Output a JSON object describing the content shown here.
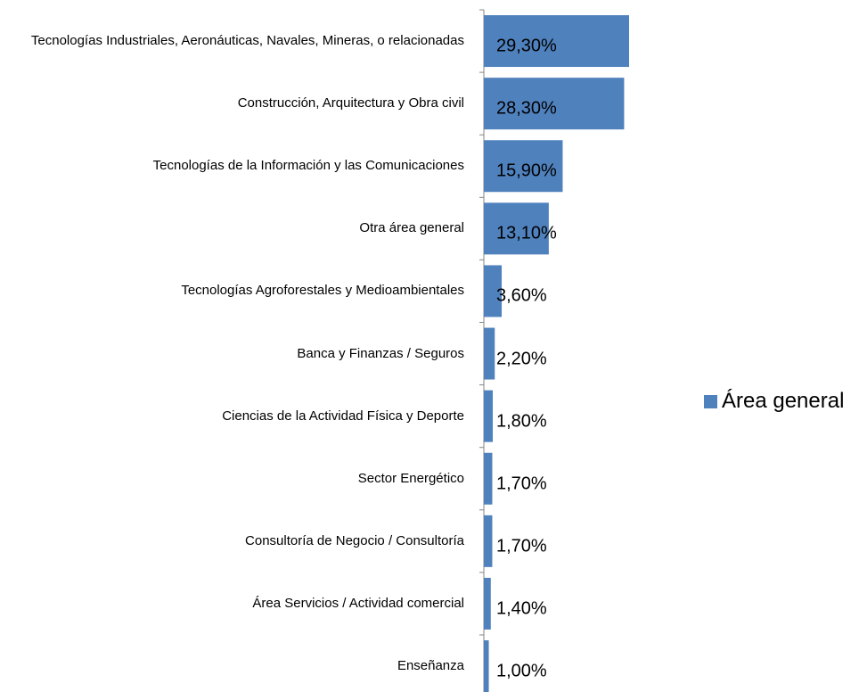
{
  "chart_data": {
    "type": "bar",
    "orientation": "horizontal",
    "categories": [
      "Tecnologías Industriales, Aeronáuticas, Navales, Mineras, o relacionadas",
      "Construcción, Arquitectura y Obra civil",
      "Tecnologías de la Información y las Comunicaciones",
      "Otra área general",
      "Tecnologías Agroforestales y Medioambientales",
      "Banca y Finanzas / Seguros",
      "Ciencias de la Actividad Física y Deporte",
      "Sector Energético",
      "Consultoría de Negocio / Consultoría",
      "Área Servicios / Actividad comercial",
      "Enseñanza"
    ],
    "series": [
      {
        "name": "Área general",
        "color": "#4f81bd",
        "values": [
          29.3,
          28.3,
          15.9,
          13.1,
          3.6,
          2.2,
          1.8,
          1.7,
          1.7,
          1.4,
          1.0
        ],
        "value_labels": [
          "29,30%",
          "28,30%",
          "15,90%",
          "13,10%",
          "3,60%",
          "2,20%",
          "1,80%",
          "1,70%",
          "1,70%",
          "1,40%",
          "1,00%"
        ]
      }
    ]
  }
}
